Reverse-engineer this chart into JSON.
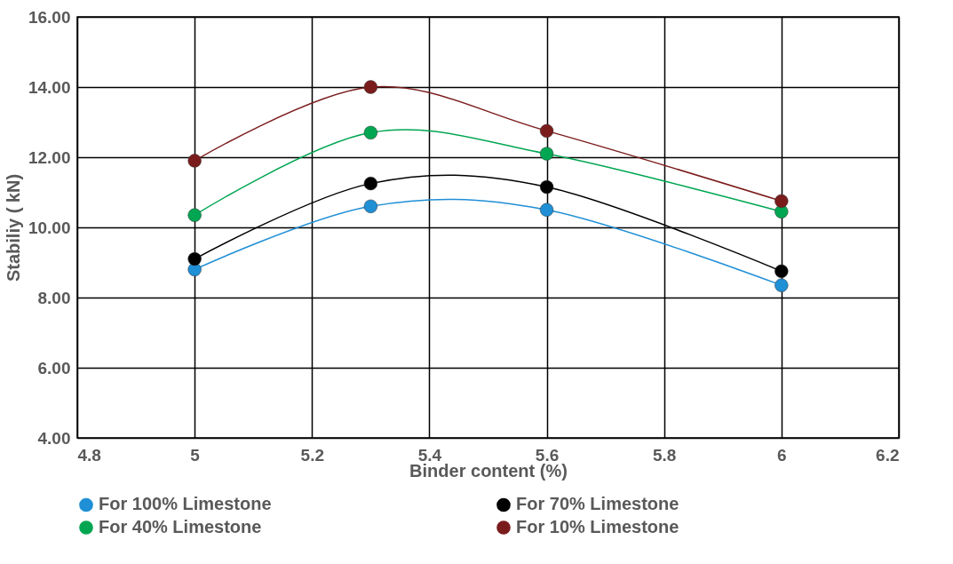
{
  "chart_data": {
    "type": "line",
    "xlabel": "Binder content (%)",
    "ylabel": "Stabiliy ( kN)",
    "x": [
      5,
      5.3,
      5.6,
      6
    ],
    "series": [
      {
        "name": "For 100% Limestone",
        "color": "#1f8fd6",
        "values": [
          8.8,
          10.6,
          10.5,
          8.35
        ]
      },
      {
        "name": "For 70% Limestone",
        "color": "#000000",
        "values": [
          9.1,
          11.25,
          11.15,
          8.75
        ]
      },
      {
        "name": "For 40% Limestone",
        "color": "#00a651",
        "values": [
          10.35,
          12.7,
          12.1,
          10.45
        ]
      },
      {
        "name": "For 10% Limestone",
        "color": "#7b1c1c",
        "values": [
          11.9,
          14.0,
          12.75,
          10.75
        ]
      }
    ],
    "xlim": [
      4.8,
      6.2
    ],
    "xticks": [
      4.8,
      5,
      5.2,
      5.4,
      5.6,
      5.8,
      6,
      6.2
    ],
    "ylim": [
      4,
      16
    ],
    "yticks": [
      {
        "value": 4,
        "label": "4.00"
      },
      {
        "value": 6,
        "label": "6.00"
      },
      {
        "value": 8,
        "label": "8.00"
      },
      {
        "value": 10,
        "label": "10.00"
      },
      {
        "value": 12,
        "label": "12.00"
      },
      {
        "value": 14,
        "label": "14.00"
      },
      {
        "value": 16,
        "label": "16.00"
      }
    ],
    "grid": true,
    "legend": "bottom",
    "marker": "circle",
    "line_style": "solid"
  }
}
